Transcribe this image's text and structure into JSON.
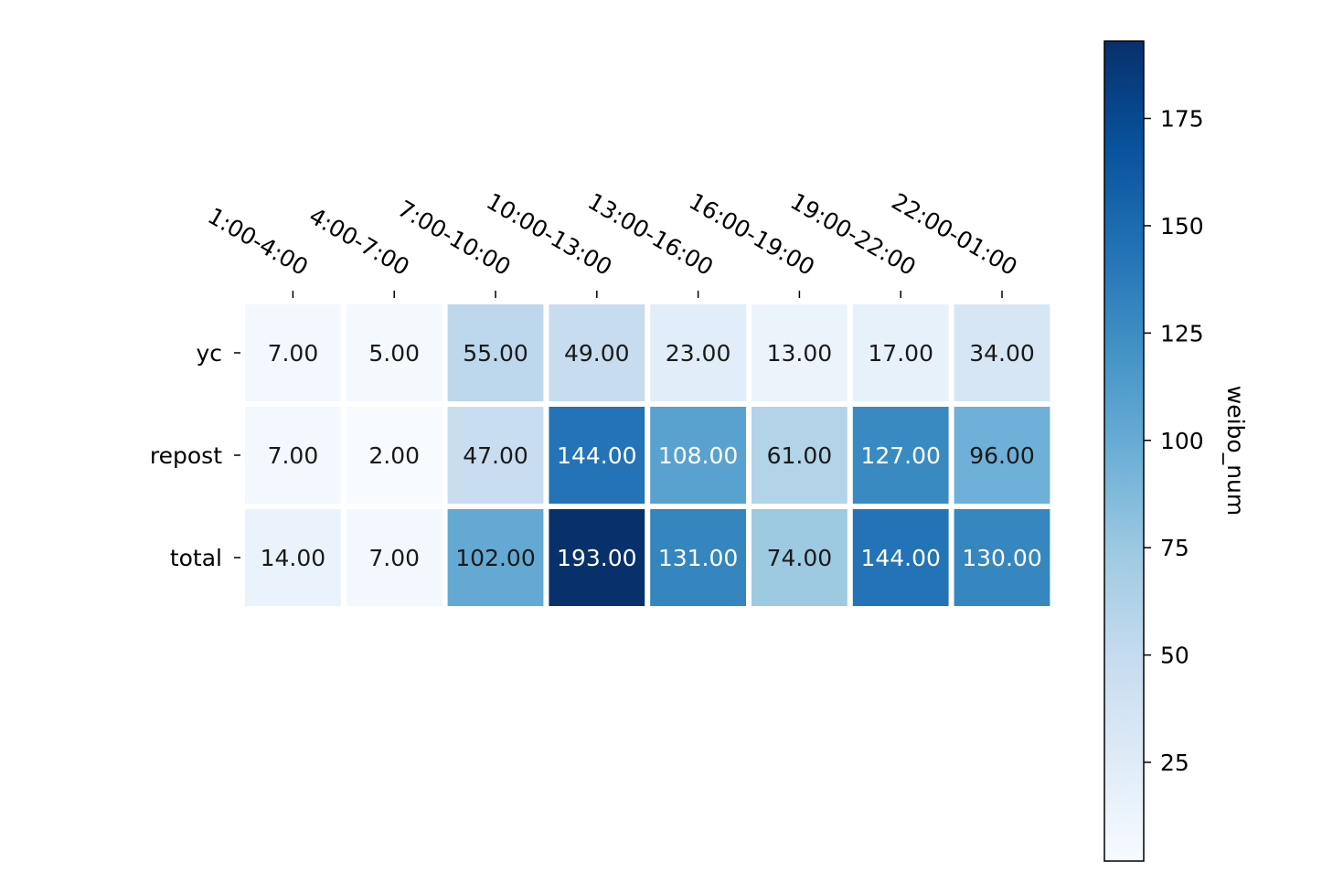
{
  "chart_data": {
    "type": "heatmap",
    "title": "",
    "xlabel": "",
    "ylabel": "",
    "x_categories": [
      "1:00-4:00",
      "4:00-7:00",
      "7:00-10:00",
      "10:00-13:00",
      "13:00-16:00",
      "16:00-19:00",
      "19:00-22:00",
      "22:00-01:00"
    ],
    "y_categories": [
      "yc",
      "repost",
      "total"
    ],
    "values": [
      [
        7,
        5,
        55,
        49,
        23,
        13,
        17,
        34
      ],
      [
        7,
        2,
        47,
        144,
        108,
        61,
        127,
        96
      ],
      [
        14,
        7,
        102,
        193,
        131,
        74,
        144,
        130
      ]
    ],
    "value_format": "2 decimals",
    "x_tick_position": "top",
    "colormap": "Blues",
    "color_range": [
      2,
      193
    ],
    "colorbar": {
      "label": "weibo_num",
      "ticks": [
        25,
        50,
        75,
        100,
        125,
        150,
        175
      ],
      "position": "right"
    },
    "grid": false,
    "cell_gap_color": "#ffffff"
  }
}
